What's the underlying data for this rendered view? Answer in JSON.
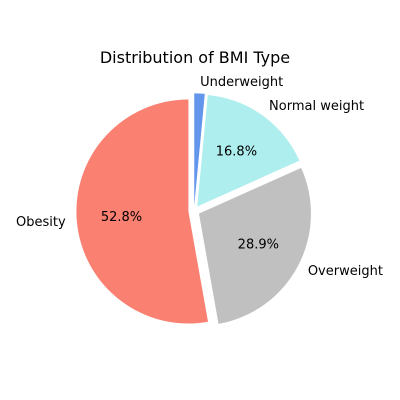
{
  "chart_data": {
    "type": "pie",
    "title": "Distribution of BMI Type",
    "categories": [
      "Underweight",
      "Normal weight",
      "Overweight",
      "Obesity"
    ],
    "values": [
      1.5,
      16.8,
      28.9,
      52.8
    ],
    "percent_labels": [
      "",
      "16.8%",
      "28.9%",
      "52.8%"
    ],
    "colors": [
      "#6495ed",
      "#afeeee",
      "#c0c0c0",
      "#fa8072"
    ],
    "start_angle_deg": 90,
    "direction": "clockwise",
    "explode": [
      0.05,
      0.05,
      0.05,
      0.05
    ]
  }
}
